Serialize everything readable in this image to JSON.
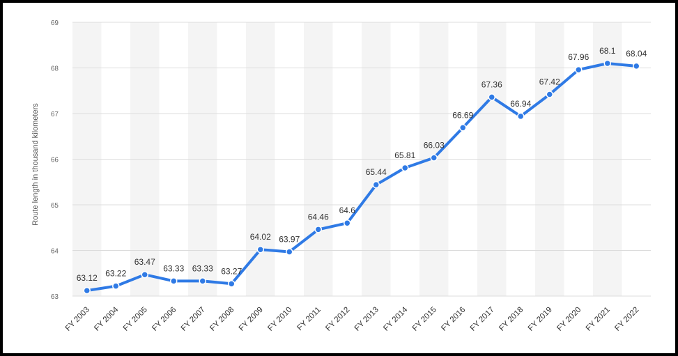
{
  "chart_data": {
    "type": "line",
    "title": "",
    "ylabel": "Route length in thousand kilometers",
    "xlabel": "",
    "categories": [
      "FY 2003",
      "FY 2004",
      "FY 2005",
      "FY 2006",
      "FY 2007",
      "FY 2008",
      "FY 2009",
      "FY 2010",
      "FY 2011",
      "FY 2012",
      "FY 2013",
      "FY 2014",
      "FY 2015",
      "FY 2016",
      "FY 2017",
      "FY 2018",
      "FY 2019",
      "FY 2020",
      "FY 2021",
      "FY 2022"
    ],
    "series": [
      {
        "values": [
          63.12,
          63.22,
          63.47,
          63.33,
          63.33,
          63.27,
          64.02,
          63.97,
          64.46,
          64.6,
          65.44,
          65.81,
          66.03,
          66.69,
          67.36,
          66.94,
          67.42,
          67.96,
          68.1,
          68.04
        ],
        "labels": [
          "63.12",
          "63.22",
          "63.47",
          "63.33",
          "63.33",
          "63.27",
          "64.02",
          "63.97",
          "64.46",
          "64.6",
          "65.44",
          "65.81",
          "66.03",
          "66.69",
          "67.36",
          "66.94",
          "67.42",
          "67.96",
          "68.1",
          "68.04"
        ]
      }
    ],
    "ylim": [
      63,
      69
    ],
    "yticks": [
      "63",
      "64",
      "65",
      "66",
      "67",
      "68",
      "69"
    ],
    "grid": true,
    "colors": {
      "line": "#2f7ae5",
      "grid": "#dcdcdc",
      "band": "#f4f4f4"
    }
  }
}
